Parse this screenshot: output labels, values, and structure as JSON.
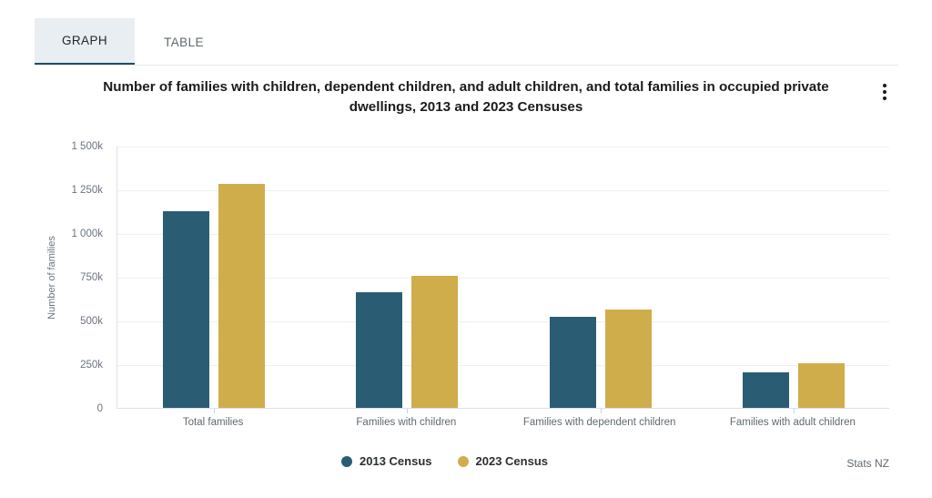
{
  "tabs": [
    {
      "id": "graph",
      "label": "GRAPH",
      "active": true
    },
    {
      "id": "table",
      "label": "TABLE",
      "active": false
    }
  ],
  "title": "Number of families with children, dependent children, and adult children, and total families in occupied private dwellings, 2013 and 2023 Censuses",
  "menu_icon": "kebab-menu-icon",
  "attribution": "Stats NZ",
  "colors": {
    "series_2013": "#2a5d73",
    "series_2023": "#d0ad4b",
    "active_tab_underline": "#1d4e63",
    "active_tab_background": "#e8eef1",
    "gridline": "#f0f0f1",
    "axis_line": "#dce1f0"
  },
  "chart_data": {
    "type": "bar",
    "title": "Number of families with children, dependent children, and adult children, and total families in occupied private dwellings, 2013 and 2023 Censuses",
    "categories": [
      "Total families",
      "Families with children",
      "Families with dependent children",
      "Families with adult children"
    ],
    "series": [
      {
        "name": "2013 Census",
        "color": "#2a5d73",
        "values_thousands": [
          1125,
          662,
          520,
          204
        ]
      },
      {
        "name": "2023 Census",
        "color": "#d0ad4b",
        "values_thousands": [
          1282,
          753,
          562,
          255
        ]
      }
    ],
    "xlabel": "",
    "ylabel": "Number of families",
    "ytick_labels": [
      "1 500k",
      "1 250k",
      "1 000k",
      "750k",
      "500k",
      "250k",
      "0"
    ],
    "ytick_values_thousands": [
      1500,
      1250,
      1000,
      750,
      500,
      250,
      0
    ],
    "ylim_thousands": [
      0,
      1500
    ],
    "grid": "horizontal",
    "legend_position": "bottom",
    "unit": "number of families (k = thousands)"
  }
}
